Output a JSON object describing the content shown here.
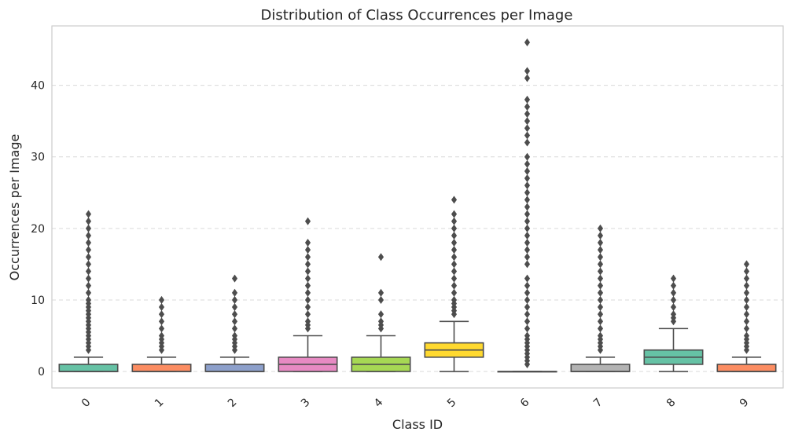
{
  "chart_data": {
    "type": "box",
    "title": "Distribution of Class Occurrences per Image",
    "xlabel": "Class ID",
    "ylabel": "Occurrences per Image",
    "ylim": [
      -2.3,
      48.3
    ],
    "yticks": [
      0,
      10,
      20,
      30,
      40
    ],
    "grid": "y-dashed",
    "categories": [
      "0",
      "1",
      "2",
      "3",
      "4",
      "5",
      "6",
      "7",
      "8",
      "9"
    ],
    "series": [
      {
        "category": "0",
        "q1": 0,
        "median": 0,
        "q3": 1,
        "whisker_low": 0,
        "whisker_high": 2,
        "color": "#66c2a5",
        "outliers": [
          3,
          3.5,
          4,
          4.5,
          5,
          5.5,
          6,
          6.5,
          7,
          7.5,
          8,
          8.5,
          9,
          9.5,
          10,
          11,
          12,
          13,
          14,
          15,
          16,
          17,
          18,
          19,
          20,
          21,
          22
        ]
      },
      {
        "category": "1",
        "q1": 0,
        "median": 0,
        "q3": 1,
        "whisker_low": 0,
        "whisker_high": 2,
        "color": "#fc8d62",
        "outliers": [
          3,
          3.5,
          4,
          4.5,
          5,
          6,
          7,
          8,
          9,
          10
        ]
      },
      {
        "category": "2",
        "q1": 0,
        "median": 0,
        "q3": 1,
        "whisker_low": 0,
        "whisker_high": 2,
        "color": "#8da0cb",
        "outliers": [
          3,
          3.5,
          4,
          4.5,
          5,
          6,
          7,
          8,
          9,
          10,
          11,
          13
        ]
      },
      {
        "category": "3",
        "q1": 0,
        "median": 1,
        "q3": 2,
        "whisker_low": 0,
        "whisker_high": 5,
        "color": "#e78ac3",
        "outliers": [
          6,
          6.5,
          7,
          8,
          9,
          10,
          11,
          12,
          13,
          14,
          15,
          16,
          17,
          18,
          21
        ]
      },
      {
        "category": "4",
        "q1": 0,
        "median": 1,
        "q3": 2,
        "whisker_low": 0,
        "whisker_high": 5,
        "color": "#a6d854",
        "outliers": [
          6,
          6.5,
          7,
          8,
          10,
          11,
          16
        ]
      },
      {
        "category": "5",
        "q1": 2,
        "median": 3,
        "q3": 4,
        "whisker_low": 0,
        "whisker_high": 7,
        "color": "#ffd92f",
        "outliers": [
          8,
          8.5,
          9,
          9.5,
          10,
          11,
          12,
          13,
          14,
          15,
          16,
          17,
          18,
          19,
          20,
          21,
          22,
          24
        ]
      },
      {
        "category": "6",
        "q1": 0,
        "median": 0,
        "q3": 0,
        "whisker_low": 0,
        "whisker_high": 0,
        "color": "#e5c494",
        "outliers": [
          1,
          1.5,
          2,
          2.5,
          3,
          3.5,
          4,
          4.5,
          5,
          6,
          7,
          8,
          9,
          10,
          11,
          12,
          13,
          15,
          16,
          17,
          18,
          19,
          20,
          21,
          22,
          23,
          24,
          25,
          26,
          27,
          28,
          29,
          30,
          32,
          33,
          34,
          35,
          36,
          37,
          38,
          41,
          42,
          46
        ]
      },
      {
        "category": "7",
        "q1": 0,
        "median": 0,
        "q3": 1,
        "whisker_low": 0,
        "whisker_high": 2,
        "color": "#b3b3b3",
        "outliers": [
          3,
          3.5,
          4,
          4.5,
          5,
          6,
          7,
          8,
          9,
          10,
          11,
          12,
          13,
          14,
          15,
          16,
          17,
          18,
          19,
          20
        ]
      },
      {
        "category": "8",
        "q1": 1,
        "median": 2,
        "q3": 3,
        "whisker_low": 0,
        "whisker_high": 6,
        "color": "#66c2a5",
        "outliers": [
          7,
          7.5,
          8,
          9,
          10,
          11,
          12,
          13
        ]
      },
      {
        "category": "9",
        "q1": 0,
        "median": 0,
        "q3": 1,
        "whisker_low": 0,
        "whisker_high": 2,
        "color": "#fc8d62",
        "outliers": [
          3,
          3.5,
          4,
          4.5,
          5,
          6,
          7,
          8,
          9,
          10,
          11,
          12,
          13,
          14,
          15
        ]
      }
    ]
  }
}
